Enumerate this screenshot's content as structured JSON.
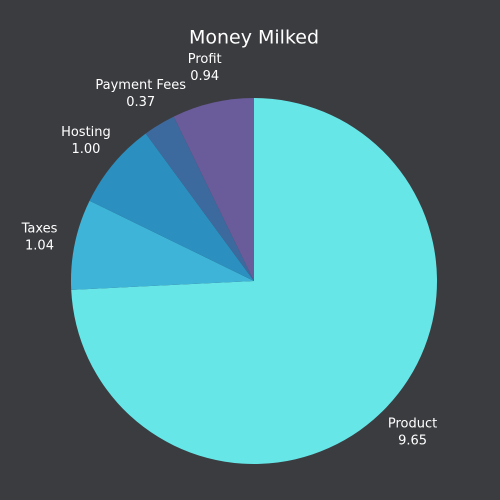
{
  "chart_data": {
    "type": "pie",
    "title": "Money Milked",
    "labels": [
      "Product",
      "Taxes",
      "Hosting",
      "Payment Fees",
      "Profit"
    ],
    "values": [
      9.65,
      1.04,
      1,
      0.37,
      0.94
    ],
    "value_labels": [
      "9.65",
      "1.04",
      "1.00",
      "0.37",
      "0.94"
    ],
    "colors": [
      "#67e6e8",
      "#3eb5d8",
      "#2b8fc0",
      "#3d6a9e",
      "#6a5b9a"
    ]
  }
}
